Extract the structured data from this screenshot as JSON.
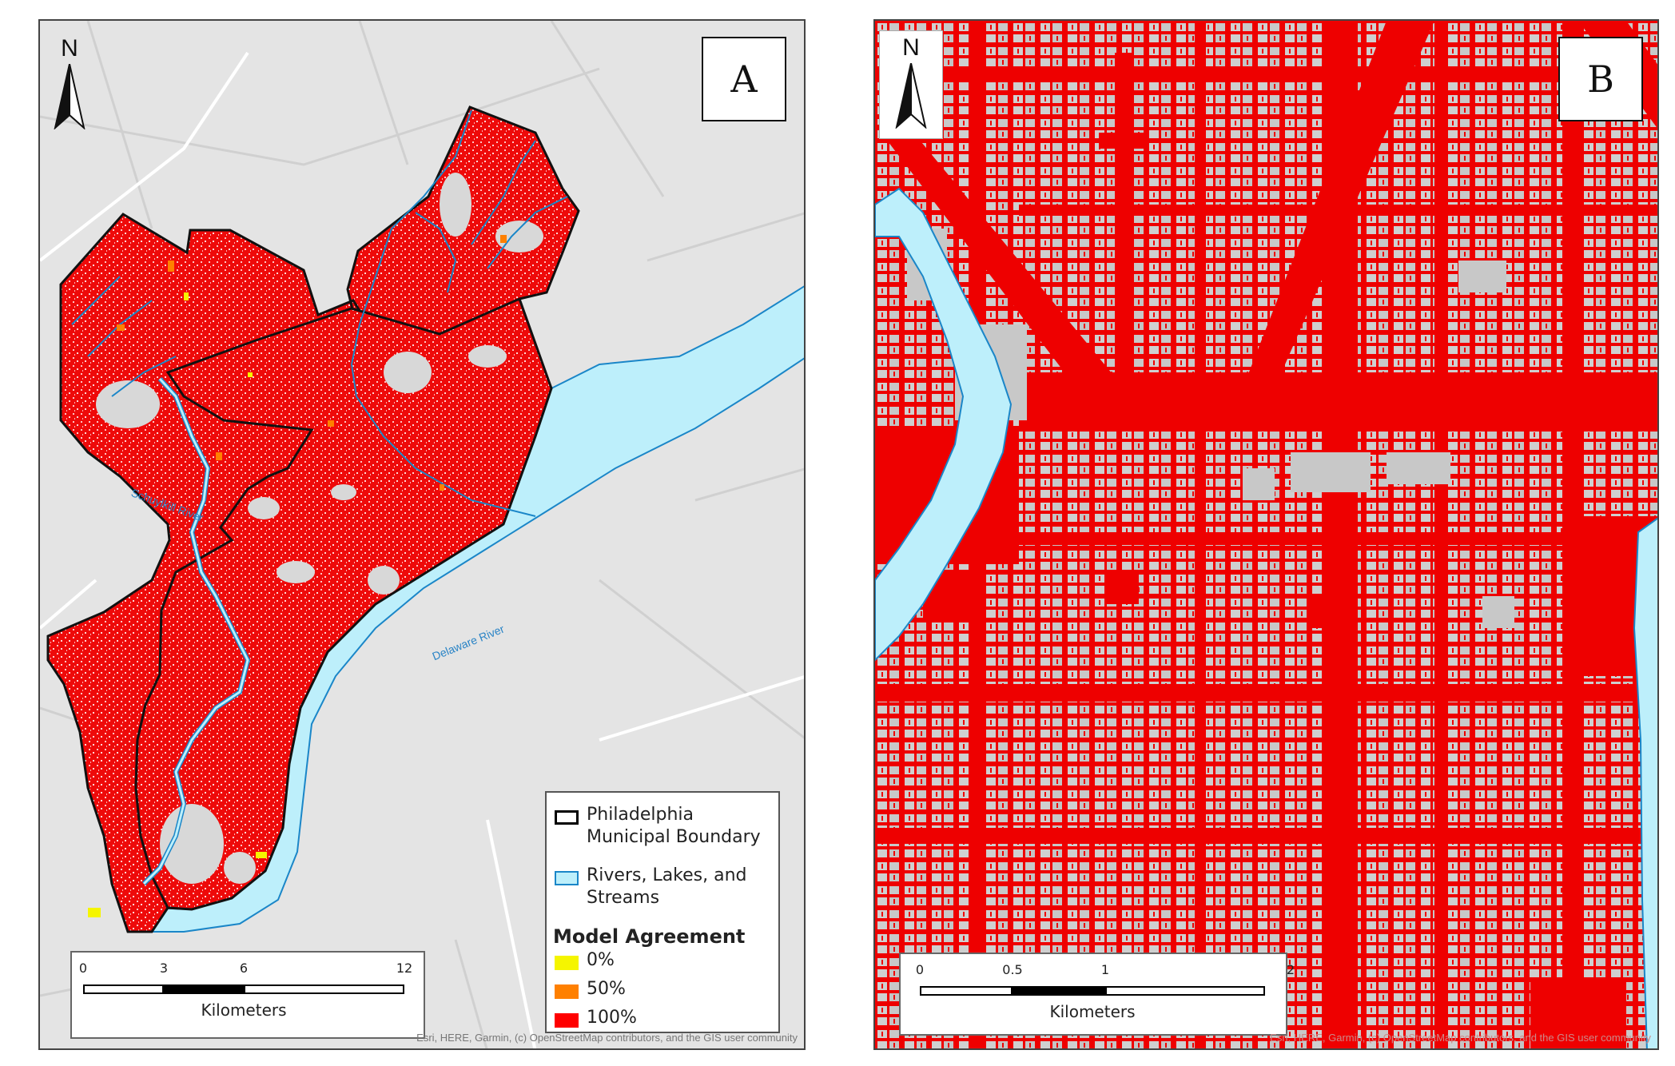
{
  "panels": [
    {
      "letter": "A",
      "north_label": "N",
      "river_labels": [
        "Schuylkill River",
        "Delaware River"
      ],
      "legend": {
        "items": [
          {
            "label": "Philadelphia Municipal Boundary",
            "fill": "#ffffff",
            "stroke": "#000000"
          },
          {
            "label": "Rivers, Lakes, and Streams",
            "fill": "#bdeffb",
            "stroke": "#1a86c8"
          }
        ],
        "title": "Model Agreement",
        "classes": [
          {
            "label": "0%",
            "color": "#f5f500"
          },
          {
            "label": "50%",
            "color": "#ff8000"
          },
          {
            "label": "100%",
            "color": "#ff0000"
          }
        ]
      },
      "scalebar": {
        "ticks": [
          "0",
          "3",
          "6",
          "12"
        ],
        "unit": "Kilometers"
      },
      "attribution": "Esri, HERE, Garmin, (c) OpenStreetMap contributors, and the GIS user community"
    },
    {
      "letter": "B",
      "north_label": "N",
      "scalebar": {
        "ticks": [
          "0",
          "0.5",
          "1",
          "2"
        ],
        "unit": "Kilometers"
      },
      "attribution": "Esri, HERE, Garmin, (c) OpenStreetMap contributors, and the GIS user community"
    }
  ],
  "colors": {
    "basemap": "#e4e4e4",
    "urban": "#ff0000",
    "water": "#bdeffb",
    "water_edge": "#1a86c8"
  }
}
